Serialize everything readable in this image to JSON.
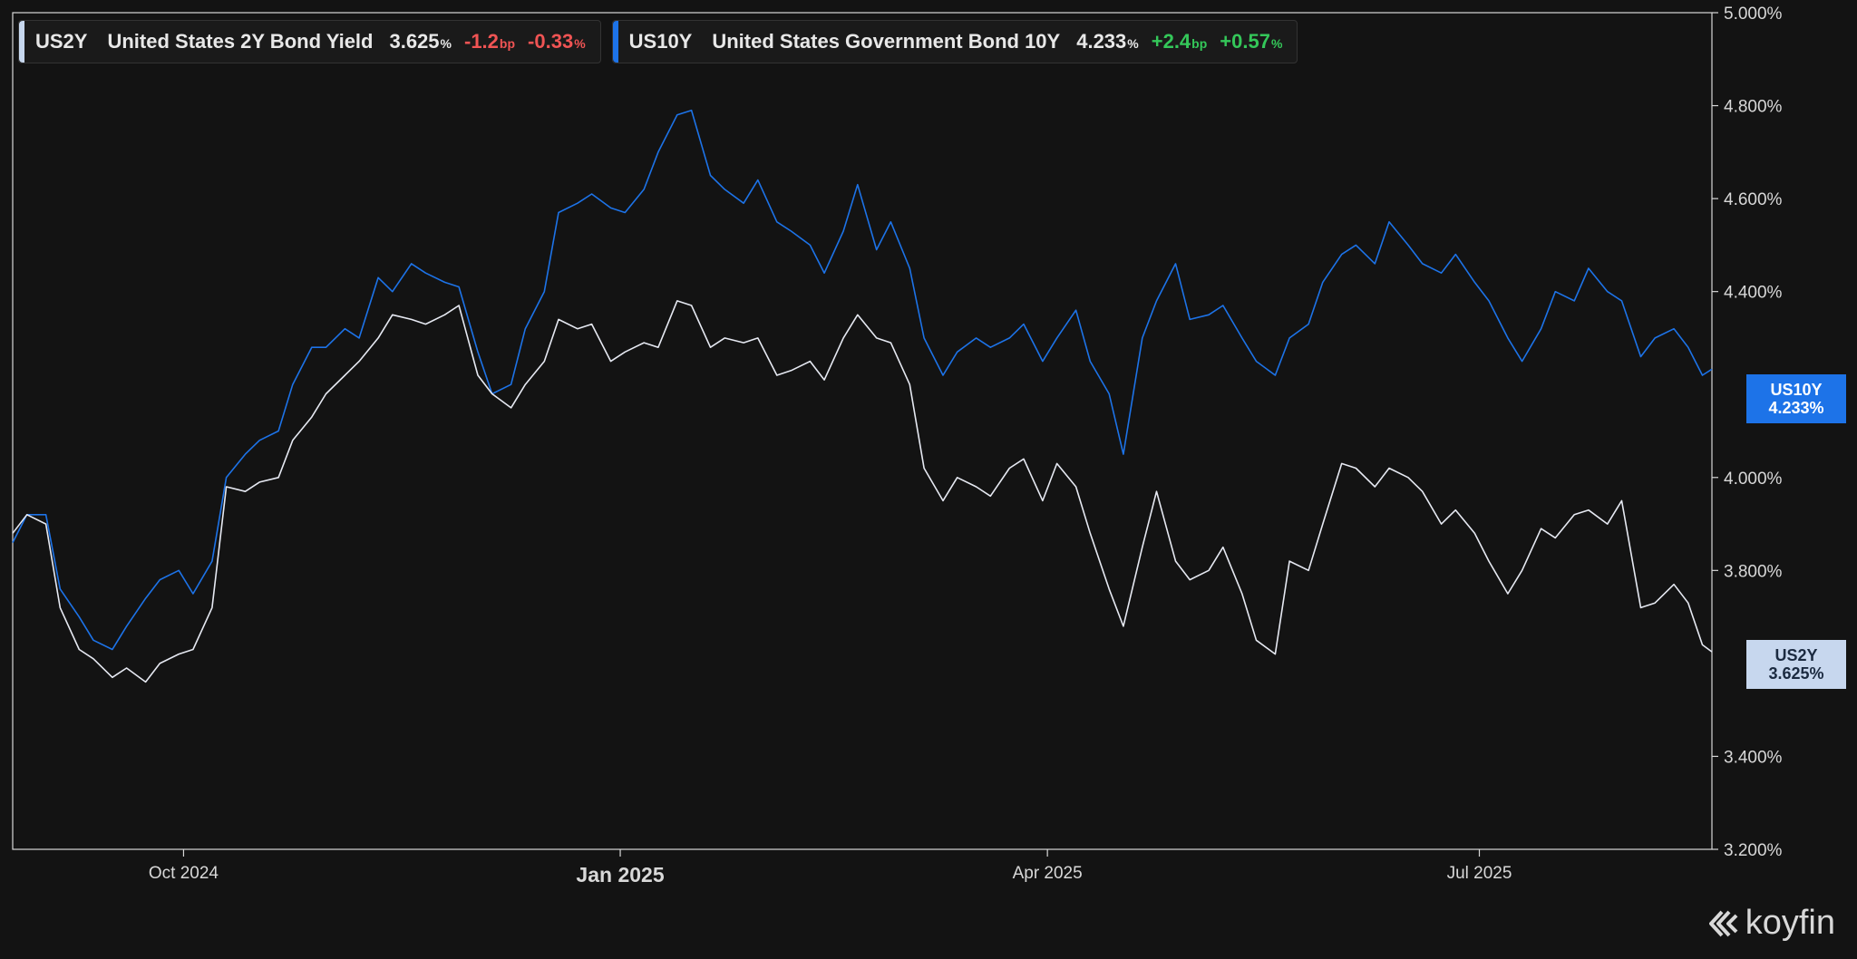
{
  "legend": [
    {
      "ticker": "US2Y",
      "name": "United States 2Y Bond Yield",
      "value": "3.625",
      "value_unit": "%",
      "change_bp": "-1.2",
      "bp_unit": "bp",
      "change_pct": "-0.33",
      "pct_unit": "%",
      "color": "#c7d7ee",
      "direction": "negative"
    },
    {
      "ticker": "US10Y",
      "name": "United States Government Bond 10Y",
      "value": "4.233",
      "value_unit": "%",
      "change_bp": "+2.4",
      "bp_unit": "bp",
      "change_pct": "+0.57",
      "pct_unit": "%",
      "color": "#1d73e8",
      "direction": "positive"
    }
  ],
  "price_tags": {
    "us10y": {
      "ticker": "US10Y",
      "value": "4.233%"
    },
    "us2y": {
      "ticker": "US2Y",
      "value": "3.625%"
    }
  },
  "brand": {
    "name": "koyfin"
  },
  "colors": {
    "background": "#131313",
    "us10y": "#1d73e8",
    "us2y": "#e6e9f2",
    "axis": "#d8d8d8"
  },
  "chart_data": {
    "type": "line",
    "xlim": [
      "2024-08-26",
      "2025-08-19"
    ],
    "ylim": [
      3.2,
      5.0
    ],
    "y_ticks": [
      3.2,
      3.4,
      3.8,
      4.0,
      4.4,
      4.6,
      4.8,
      5.0
    ],
    "y_tick_labels": [
      "3.200%",
      "3.400%",
      "3.800%",
      "4.000%",
      "4.400%",
      "4.600%",
      "4.800%",
      "5.000%"
    ],
    "x_ticks": [
      {
        "date": "2024-10-01",
        "label": "Oct 2024",
        "bold": false
      },
      {
        "date": "2025-01-01",
        "label": "Jan 2025",
        "bold": true
      },
      {
        "date": "2025-04-01",
        "label": "Apr 2025",
        "bold": false
      },
      {
        "date": "2025-07-01",
        "label": "Jul 2025",
        "bold": false
      }
    ],
    "grid": false,
    "legend_position": "top-left",
    "series": [
      {
        "name": "US10Y",
        "points": [
          [
            "2024-08-26",
            3.86
          ],
          [
            "2024-08-29",
            3.92
          ],
          [
            "2024-09-02",
            3.92
          ],
          [
            "2024-09-05",
            3.76
          ],
          [
            "2024-09-09",
            3.7
          ],
          [
            "2024-09-12",
            3.65
          ],
          [
            "2024-09-16",
            3.63
          ],
          [
            "2024-09-19",
            3.68
          ],
          [
            "2024-09-23",
            3.74
          ],
          [
            "2024-09-26",
            3.78
          ],
          [
            "2024-09-30",
            3.8
          ],
          [
            "2024-10-03",
            3.75
          ],
          [
            "2024-10-07",
            3.82
          ],
          [
            "2024-10-10",
            4.0
          ],
          [
            "2024-10-14",
            4.05
          ],
          [
            "2024-10-17",
            4.08
          ],
          [
            "2024-10-21",
            4.1
          ],
          [
            "2024-10-24",
            4.2
          ],
          [
            "2024-10-28",
            4.28
          ],
          [
            "2024-10-31",
            4.28
          ],
          [
            "2024-11-04",
            4.32
          ],
          [
            "2024-11-07",
            4.3
          ],
          [
            "2024-11-11",
            4.43
          ],
          [
            "2024-11-14",
            4.4
          ],
          [
            "2024-11-18",
            4.46
          ],
          [
            "2024-11-21",
            4.44
          ],
          [
            "2024-11-25",
            4.42
          ],
          [
            "2024-11-28",
            4.41
          ],
          [
            "2024-12-02",
            4.27
          ],
          [
            "2024-12-05",
            4.18
          ],
          [
            "2024-12-09",
            4.2
          ],
          [
            "2024-12-12",
            4.32
          ],
          [
            "2024-12-16",
            4.4
          ],
          [
            "2024-12-19",
            4.57
          ],
          [
            "2024-12-23",
            4.59
          ],
          [
            "2024-12-26",
            4.61
          ],
          [
            "2024-12-30",
            4.58
          ],
          [
            "2025-01-02",
            4.57
          ],
          [
            "2025-01-06",
            4.62
          ],
          [
            "2025-01-09",
            4.7
          ],
          [
            "2025-01-13",
            4.78
          ],
          [
            "2025-01-16",
            4.79
          ],
          [
            "2025-01-20",
            4.65
          ],
          [
            "2025-01-23",
            4.62
          ],
          [
            "2025-01-27",
            4.59
          ],
          [
            "2025-01-30",
            4.64
          ],
          [
            "2025-02-03",
            4.55
          ],
          [
            "2025-02-06",
            4.53
          ],
          [
            "2025-02-10",
            4.5
          ],
          [
            "2025-02-13",
            4.44
          ],
          [
            "2025-02-17",
            4.53
          ],
          [
            "2025-02-20",
            4.63
          ],
          [
            "2025-02-24",
            4.49
          ],
          [
            "2025-02-27",
            4.55
          ],
          [
            "2025-03-03",
            4.45
          ],
          [
            "2025-03-06",
            4.3
          ],
          [
            "2025-03-10",
            4.22
          ],
          [
            "2025-03-13",
            4.27
          ],
          [
            "2025-03-17",
            4.3
          ],
          [
            "2025-03-20",
            4.28
          ],
          [
            "2025-03-24",
            4.3
          ],
          [
            "2025-03-27",
            4.33
          ],
          [
            "2025-03-31",
            4.25
          ],
          [
            "2025-04-03",
            4.3
          ],
          [
            "2025-04-07",
            4.36
          ],
          [
            "2025-04-10",
            4.25
          ],
          [
            "2025-04-14",
            4.18
          ],
          [
            "2025-04-17",
            4.05
          ],
          [
            "2025-04-21",
            4.3
          ],
          [
            "2025-04-24",
            4.38
          ],
          [
            "2025-04-28",
            4.46
          ],
          [
            "2025-05-01",
            4.34
          ],
          [
            "2025-05-05",
            4.35
          ],
          [
            "2025-05-08",
            4.37
          ],
          [
            "2025-05-12",
            4.3
          ],
          [
            "2025-05-15",
            4.25
          ],
          [
            "2025-05-19",
            4.22
          ],
          [
            "2025-05-22",
            4.3
          ],
          [
            "2025-05-26",
            4.33
          ],
          [
            "2025-05-29",
            4.42
          ],
          [
            "2025-06-02",
            4.48
          ],
          [
            "2025-06-05",
            4.5
          ],
          [
            "2025-06-09",
            4.46
          ],
          [
            "2025-06-12",
            4.55
          ],
          [
            "2025-06-16",
            4.5
          ],
          [
            "2025-06-19",
            4.46
          ],
          [
            "2025-06-23",
            4.44
          ],
          [
            "2025-06-26",
            4.48
          ],
          [
            "2025-06-30",
            4.42
          ],
          [
            "2025-07-03",
            4.38
          ],
          [
            "2025-07-07",
            4.3
          ],
          [
            "2025-07-10",
            4.25
          ],
          [
            "2025-07-14",
            4.32
          ],
          [
            "2025-07-17",
            4.4
          ],
          [
            "2025-07-21",
            4.38
          ],
          [
            "2025-07-24",
            4.45
          ],
          [
            "2025-07-28",
            4.4
          ],
          [
            "2025-07-31",
            4.38
          ],
          [
            "2025-08-04",
            4.26
          ],
          [
            "2025-08-07",
            4.3
          ],
          [
            "2025-08-11",
            4.32
          ],
          [
            "2025-08-14",
            4.28
          ],
          [
            "2025-08-17",
            4.22
          ],
          [
            "2025-08-19",
            4.233
          ]
        ]
      },
      {
        "name": "US2Y",
        "points": [
          [
            "2024-08-26",
            3.88
          ],
          [
            "2024-08-29",
            3.92
          ],
          [
            "2024-09-02",
            3.9
          ],
          [
            "2024-09-05",
            3.72
          ],
          [
            "2024-09-09",
            3.63
          ],
          [
            "2024-09-12",
            3.61
          ],
          [
            "2024-09-16",
            3.57
          ],
          [
            "2024-09-19",
            3.59
          ],
          [
            "2024-09-23",
            3.56
          ],
          [
            "2024-09-26",
            3.6
          ],
          [
            "2024-09-30",
            3.62
          ],
          [
            "2024-10-03",
            3.63
          ],
          [
            "2024-10-07",
            3.72
          ],
          [
            "2024-10-10",
            3.98
          ],
          [
            "2024-10-14",
            3.97
          ],
          [
            "2024-10-17",
            3.99
          ],
          [
            "2024-10-21",
            4.0
          ],
          [
            "2024-10-24",
            4.08
          ],
          [
            "2024-10-28",
            4.13
          ],
          [
            "2024-10-31",
            4.18
          ],
          [
            "2024-11-04",
            4.22
          ],
          [
            "2024-11-07",
            4.25
          ],
          [
            "2024-11-11",
            4.3
          ],
          [
            "2024-11-14",
            4.35
          ],
          [
            "2024-11-18",
            4.34
          ],
          [
            "2024-11-21",
            4.33
          ],
          [
            "2024-11-25",
            4.35
          ],
          [
            "2024-11-28",
            4.37
          ],
          [
            "2024-12-02",
            4.22
          ],
          [
            "2024-12-05",
            4.18
          ],
          [
            "2024-12-09",
            4.15
          ],
          [
            "2024-12-12",
            4.2
          ],
          [
            "2024-12-16",
            4.25
          ],
          [
            "2024-12-19",
            4.34
          ],
          [
            "2024-12-23",
            4.32
          ],
          [
            "2024-12-26",
            4.33
          ],
          [
            "2024-12-30",
            4.25
          ],
          [
            "2025-01-02",
            4.27
          ],
          [
            "2025-01-06",
            4.29
          ],
          [
            "2025-01-09",
            4.28
          ],
          [
            "2025-01-13",
            4.38
          ],
          [
            "2025-01-16",
            4.37
          ],
          [
            "2025-01-20",
            4.28
          ],
          [
            "2025-01-23",
            4.3
          ],
          [
            "2025-01-27",
            4.29
          ],
          [
            "2025-01-30",
            4.3
          ],
          [
            "2025-02-03",
            4.22
          ],
          [
            "2025-02-06",
            4.23
          ],
          [
            "2025-02-10",
            4.25
          ],
          [
            "2025-02-13",
            4.21
          ],
          [
            "2025-02-17",
            4.3
          ],
          [
            "2025-02-20",
            4.35
          ],
          [
            "2025-02-24",
            4.3
          ],
          [
            "2025-02-27",
            4.29
          ],
          [
            "2025-03-03",
            4.2
          ],
          [
            "2025-03-06",
            4.02
          ],
          [
            "2025-03-10",
            3.95
          ],
          [
            "2025-03-13",
            4.0
          ],
          [
            "2025-03-17",
            3.98
          ],
          [
            "2025-03-20",
            3.96
          ],
          [
            "2025-03-24",
            4.02
          ],
          [
            "2025-03-27",
            4.04
          ],
          [
            "2025-03-31",
            3.95
          ],
          [
            "2025-04-03",
            4.03
          ],
          [
            "2025-04-07",
            3.98
          ],
          [
            "2025-04-10",
            3.88
          ],
          [
            "2025-04-14",
            3.76
          ],
          [
            "2025-04-17",
            3.68
          ],
          [
            "2025-04-21",
            3.85
          ],
          [
            "2025-04-24",
            3.97
          ],
          [
            "2025-04-28",
            3.82
          ],
          [
            "2025-05-01",
            3.78
          ],
          [
            "2025-05-05",
            3.8
          ],
          [
            "2025-05-08",
            3.85
          ],
          [
            "2025-05-12",
            3.75
          ],
          [
            "2025-05-15",
            3.65
          ],
          [
            "2025-05-19",
            3.62
          ],
          [
            "2025-05-22",
            3.82
          ],
          [
            "2025-05-26",
            3.8
          ],
          [
            "2025-05-29",
            3.9
          ],
          [
            "2025-06-02",
            4.03
          ],
          [
            "2025-06-05",
            4.02
          ],
          [
            "2025-06-09",
            3.98
          ],
          [
            "2025-06-12",
            4.02
          ],
          [
            "2025-06-16",
            4.0
          ],
          [
            "2025-06-19",
            3.97
          ],
          [
            "2025-06-23",
            3.9
          ],
          [
            "2025-06-26",
            3.93
          ],
          [
            "2025-06-30",
            3.88
          ],
          [
            "2025-07-03",
            3.82
          ],
          [
            "2025-07-07",
            3.75
          ],
          [
            "2025-07-10",
            3.8
          ],
          [
            "2025-07-14",
            3.89
          ],
          [
            "2025-07-17",
            3.87
          ],
          [
            "2025-07-21",
            3.92
          ],
          [
            "2025-07-24",
            3.93
          ],
          [
            "2025-07-28",
            3.9
          ],
          [
            "2025-07-31",
            3.95
          ],
          [
            "2025-08-04",
            3.72
          ],
          [
            "2025-08-07",
            3.73
          ],
          [
            "2025-08-11",
            3.77
          ],
          [
            "2025-08-14",
            3.73
          ],
          [
            "2025-08-17",
            3.64
          ],
          [
            "2025-08-19",
            3.625
          ]
        ]
      }
    ]
  }
}
